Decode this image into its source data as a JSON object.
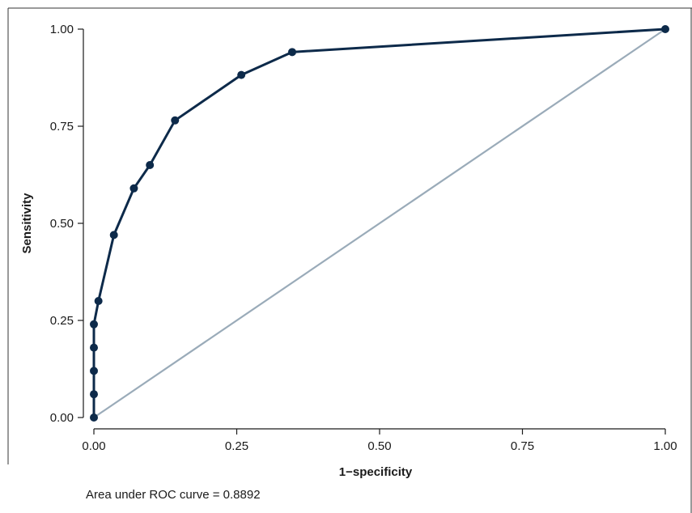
{
  "chart_data": {
    "type": "line",
    "xlabel": "1−specificity",
    "ylabel": "Sensitivity",
    "xlim": [
      0,
      1
    ],
    "ylim": [
      0,
      1
    ],
    "x_ticks": [
      "0.00",
      "0.25",
      "0.50",
      "0.75",
      "1.00"
    ],
    "y_ticks": [
      "0.00",
      "0.25",
      "0.50",
      "0.75",
      "1.00"
    ],
    "grid": false,
    "legend": "none",
    "annotation": "Area under ROC curve = 0.8892",
    "series": [
      {
        "role": "roc-curve",
        "color": "#0d2a4a",
        "markers": true,
        "points": [
          {
            "x": 0.0,
            "y": 0.0
          },
          {
            "x": 0.0,
            "y": 0.06
          },
          {
            "x": 0.0,
            "y": 0.12
          },
          {
            "x": 0.0,
            "y": 0.18
          },
          {
            "x": 0.0,
            "y": 0.24
          },
          {
            "x": 0.008,
            "y": 0.3
          },
          {
            "x": 0.035,
            "y": 0.47
          },
          {
            "x": 0.07,
            "y": 0.59
          },
          {
            "x": 0.098,
            "y": 0.65
          },
          {
            "x": 0.142,
            "y": 0.765
          },
          {
            "x": 0.258,
            "y": 0.882
          },
          {
            "x": 0.347,
            "y": 0.941
          },
          {
            "x": 1.0,
            "y": 1.0
          }
        ]
      },
      {
        "role": "reference-line",
        "color": "#9aabb9",
        "markers": false,
        "points": [
          {
            "x": 0.0,
            "y": 0.0
          },
          {
            "x": 1.0,
            "y": 1.0
          }
        ]
      }
    ]
  }
}
